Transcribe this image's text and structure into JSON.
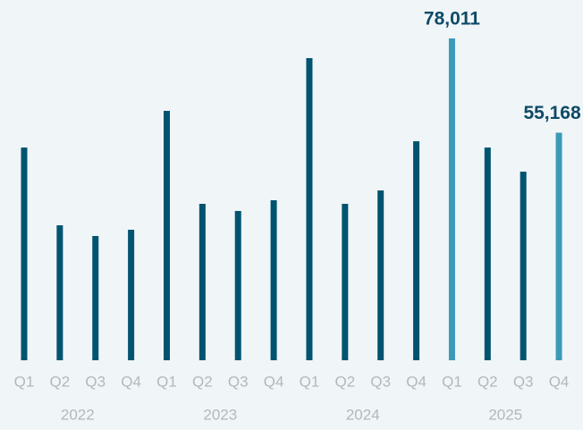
{
  "chart_data": {
    "type": "bar",
    "categories": [
      "Q1",
      "Q2",
      "Q3",
      "Q4",
      "Q1",
      "Q2",
      "Q3",
      "Q4",
      "Q1",
      "Q2",
      "Q3",
      "Q4",
      "Q1",
      "Q2",
      "Q3",
      "Q4"
    ],
    "years": [
      "2022",
      "2023",
      "2024",
      "2025"
    ],
    "values": [
      51570,
      32720,
      30120,
      31640,
      60460,
      37920,
      36190,
      38790,
      73240,
      37920,
      41170,
      53090,
      78011,
      51570,
      45720,
      55168
    ],
    "value_labels": [
      null,
      null,
      null,
      null,
      null,
      null,
      null,
      null,
      null,
      null,
      null,
      null,
      "78,011",
      null,
      null,
      "55,168"
    ],
    "colors": [
      "#005470",
      "#005470",
      "#005470",
      "#005470",
      "#005470",
      "#005470",
      "#005470",
      "#005470",
      "#005470",
      "#005470",
      "#005470",
      "#005470",
      "#3a9ab8",
      "#005470",
      "#005470",
      "#3a9ab8"
    ]
  }
}
